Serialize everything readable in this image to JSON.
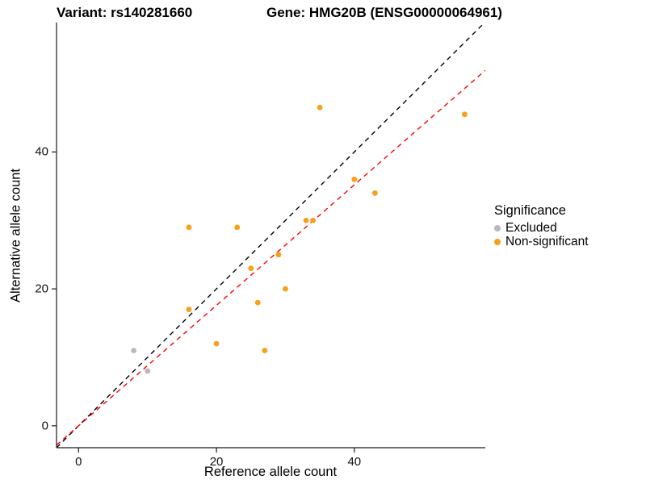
{
  "chart_data": {
    "type": "scatter",
    "title_left": "Variant: rs140281660",
    "title_right": "Gene: HMG20B (ENSG00000064961)",
    "xlabel": "Reference allele count",
    "ylabel": "Alternative allele count",
    "xlim": [
      -3.2,
      59
    ],
    "ylim": [
      -3.2,
      58.9
    ],
    "x_ticks": [
      0,
      20,
      40
    ],
    "y_ticks": [
      0,
      20,
      40
    ],
    "grid": false,
    "legend_position": "right",
    "legend": {
      "title": "Significance",
      "entries": [
        "Excluded",
        "Non-significant"
      ]
    },
    "series": [
      {
        "name": "Excluded",
        "color": "#B9B9B9",
        "points": [
          [
            8,
            11
          ],
          [
            10,
            8
          ]
        ]
      },
      {
        "name": "Non-significant",
        "color": "#F7A018",
        "points": [
          [
            16,
            29
          ],
          [
            16,
            17
          ],
          [
            20,
            12
          ],
          [
            23,
            29
          ],
          [
            25,
            23
          ],
          [
            26,
            18
          ],
          [
            27,
            11
          ],
          [
            29,
            25
          ],
          [
            30,
            20
          ],
          [
            33,
            30
          ],
          [
            34,
            30
          ],
          [
            35,
            46.5
          ],
          [
            40,
            36
          ],
          [
            43,
            34
          ],
          [
            56,
            45.5
          ]
        ]
      }
    ],
    "lines": [
      {
        "name": "identity",
        "slope": 1.0,
        "intercept": 0,
        "color": "#000000",
        "style": "dashed"
      },
      {
        "name": "fit",
        "slope": 0.88,
        "intercept": 0,
        "color": "#FF0000",
        "style": "dashed"
      }
    ]
  }
}
